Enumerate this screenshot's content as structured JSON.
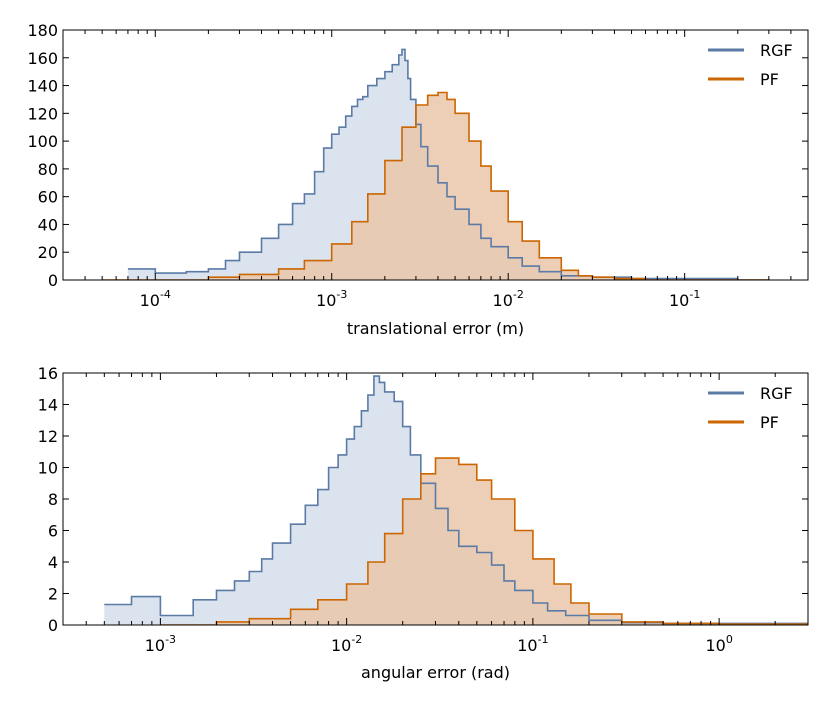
{
  "colors": {
    "rgf": "#5b7ba6",
    "rgf_fill": "#dbe3ee",
    "pf": "#cc6600",
    "pf_fill": "#e9c7a9",
    "overlap_fill": "#d3bfad"
  },
  "chart_data": [
    {
      "type": "area",
      "title": "",
      "xlabel": "translational error (m)",
      "ylabel": "",
      "xscale": "log",
      "xlim": [
        3e-05,
        0.5
      ],
      "ylim": [
        0,
        180
      ],
      "y_ticks": [
        0,
        20,
        40,
        60,
        80,
        100,
        120,
        140,
        160,
        180
      ],
      "x_ticks": [
        {
          "value": 0.0001,
          "base": "10",
          "exp": "-4"
        },
        {
          "value": 0.001,
          "base": "10",
          "exp": "-3"
        },
        {
          "value": 0.01,
          "base": "10",
          "exp": "-2"
        },
        {
          "value": 0.1,
          "base": "10",
          "exp": "-1"
        }
      ],
      "legend": {
        "position": "top-right"
      },
      "series": [
        {
          "name": "RGF",
          "x": [
            7e-05,
            0.0001,
            0.00015,
            0.0002,
            0.00025,
            0.0003,
            0.0004,
            0.0005,
            0.0006,
            0.0007,
            0.0008,
            0.0009,
            0.001,
            0.0011,
            0.0012,
            0.0013,
            0.0014,
            0.0015,
            0.0016,
            0.0018,
            0.002,
            0.0022,
            0.0024,
            0.0025,
            0.0026,
            0.0027,
            0.0028,
            0.003,
            0.0032,
            0.0035,
            0.004,
            0.0045,
            0.005,
            0.006,
            0.007,
            0.008,
            0.01,
            0.012,
            0.015,
            0.02,
            0.03,
            0.05,
            0.1,
            0.2
          ],
          "y": [
            8,
            5,
            6,
            8,
            14,
            20,
            30,
            40,
            55,
            62,
            78,
            95,
            105,
            110,
            118,
            125,
            130,
            132,
            140,
            145,
            150,
            155,
            162,
            166,
            158,
            145,
            130,
            112,
            96,
            82,
            70,
            60,
            51,
            40,
            30,
            24,
            16,
            10,
            6,
            3,
            2,
            1,
            1,
            0
          ]
        },
        {
          "name": "PF",
          "x": [
            5e-05,
            0.0001,
            0.0002,
            0.0003,
            0.0005,
            0.0007,
            0.001,
            0.0013,
            0.0016,
            0.002,
            0.0025,
            0.003,
            0.0035,
            0.004,
            0.0045,
            0.005,
            0.006,
            0.007,
            0.008,
            0.01,
            0.012,
            0.015,
            0.02,
            0.025,
            0.03,
            0.04,
            0.06,
            0.1,
            0.2
          ],
          "y": [
            0,
            0,
            2,
            4,
            8,
            14,
            26,
            42,
            62,
            86,
            110,
            126,
            133,
            135,
            130,
            120,
            100,
            82,
            64,
            42,
            28,
            16,
            7,
            3,
            2,
            1,
            0,
            0,
            0
          ]
        }
      ]
    },
    {
      "type": "area",
      "title": "",
      "xlabel": "angular error (rad)",
      "ylabel": "",
      "xscale": "log",
      "xlim": [
        0.0003,
        3
      ],
      "ylim": [
        0,
        16
      ],
      "y_ticks": [
        0,
        2,
        4,
        6,
        8,
        10,
        12,
        14,
        16
      ],
      "x_ticks": [
        {
          "value": 0.001,
          "base": "10",
          "exp": "-3"
        },
        {
          "value": 0.01,
          "base": "10",
          "exp": "-2"
        },
        {
          "value": 0.1,
          "base": "10",
          "exp": "-1"
        },
        {
          "value": 1,
          "base": "10",
          "exp": "0"
        }
      ],
      "legend": {
        "position": "top-right"
      },
      "series": [
        {
          "name": "RGF",
          "x": [
            0.0005,
            0.0007,
            0.001,
            0.0015,
            0.002,
            0.0025,
            0.003,
            0.0035,
            0.004,
            0.005,
            0.006,
            0.007,
            0.008,
            0.009,
            0.01,
            0.011,
            0.012,
            0.013,
            0.014,
            0.015,
            0.016,
            0.018,
            0.02,
            0.022,
            0.025,
            0.03,
            0.035,
            0.04,
            0.05,
            0.06,
            0.07,
            0.08,
            0.1,
            0.12,
            0.15,
            0.2,
            0.3,
            0.5,
            1,
            2
          ],
          "y": [
            1.3,
            1.8,
            0.6,
            1.6,
            2.2,
            2.8,
            3.4,
            4.2,
            5.2,
            6.4,
            7.6,
            8.6,
            10,
            10.8,
            11.8,
            12.6,
            13.6,
            14.6,
            15.8,
            15.4,
            14.8,
            14.2,
            12.6,
            10.8,
            9,
            7.4,
            6,
            5,
            4.6,
            3.8,
            2.8,
            2.2,
            1.4,
            0.9,
            0.6,
            0.3,
            0.15,
            0.1,
            0.1,
            0.1
          ]
        },
        {
          "name": "PF",
          "x": [
            0.001,
            0.002,
            0.003,
            0.005,
            0.007,
            0.01,
            0.013,
            0.016,
            0.02,
            0.025,
            0.03,
            0.035,
            0.04,
            0.05,
            0.06,
            0.08,
            0.1,
            0.13,
            0.16,
            0.2,
            0.3,
            0.5,
            1,
            2
          ],
          "y": [
            0,
            0.2,
            0.4,
            1,
            1.6,
            2.6,
            4,
            5.8,
            8,
            9.6,
            10.6,
            10.6,
            10.2,
            9.2,
            8,
            6,
            4.2,
            2.6,
            1.4,
            0.7,
            0.2,
            0.1,
            0.05,
            0.05
          ]
        }
      ]
    }
  ]
}
